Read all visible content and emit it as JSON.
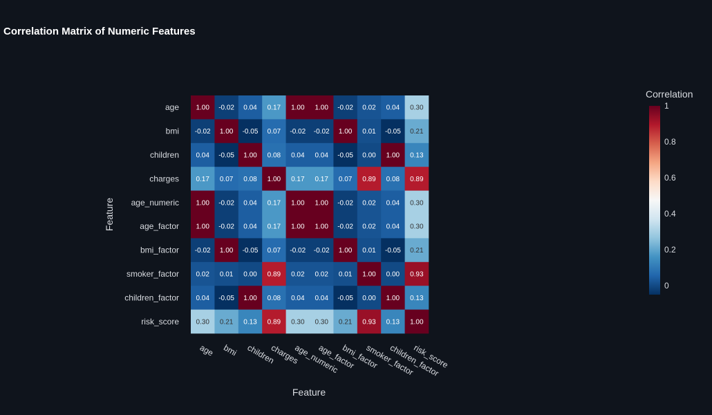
{
  "chart_data": {
    "type": "heatmap",
    "title": "Correlation Matrix of Numeric Features",
    "xlabel": "Feature",
    "ylabel": "Feature",
    "legend_title": "Correlation",
    "legend_placement": "right",
    "legend_ticks": [
      "0",
      "0.2",
      "0.4",
      "0.6",
      "0.8",
      "1"
    ],
    "color_scale": {
      "domain": [
        -0.05,
        1.0
      ],
      "stops": [
        "#053061",
        "#2166ac",
        "#4393c3",
        "#92c5de",
        "#d1e5f0",
        "#f7f7f7",
        "#fddbc7",
        "#f4a582",
        "#d6604d",
        "#b2182b",
        "#67001f"
      ]
    },
    "features": [
      "age",
      "bmi",
      "children",
      "charges",
      "age_numeric",
      "age_factor",
      "bmi_factor",
      "smoker_factor",
      "children_factor",
      "risk_score"
    ],
    "matrix": [
      [
        1.0,
        -0.02,
        0.04,
        0.17,
        1.0,
        1.0,
        -0.02,
        0.02,
        0.04,
        0.3
      ],
      [
        -0.02,
        1.0,
        -0.05,
        0.07,
        -0.02,
        -0.02,
        1.0,
        0.01,
        -0.05,
        0.21
      ],
      [
        0.04,
        -0.05,
        1.0,
        0.08,
        0.04,
        0.04,
        -0.05,
        0.0,
        1.0,
        0.13
      ],
      [
        0.17,
        0.07,
        0.08,
        1.0,
        0.17,
        0.17,
        0.07,
        0.89,
        0.08,
        0.89
      ],
      [
        1.0,
        -0.02,
        0.04,
        0.17,
        1.0,
        1.0,
        -0.02,
        0.02,
        0.04,
        0.3
      ],
      [
        1.0,
        -0.02,
        0.04,
        0.17,
        1.0,
        1.0,
        -0.02,
        0.02,
        0.04,
        0.3
      ],
      [
        -0.02,
        1.0,
        -0.05,
        0.07,
        -0.02,
        -0.02,
        1.0,
        0.01,
        -0.05,
        0.21
      ],
      [
        0.02,
        0.01,
        0.0,
        0.89,
        0.02,
        0.02,
        0.01,
        1.0,
        0.0,
        0.93
      ],
      [
        0.04,
        -0.05,
        1.0,
        0.08,
        0.04,
        0.04,
        -0.05,
        0.0,
        1.0,
        0.13
      ],
      [
        0.3,
        0.21,
        0.13,
        0.89,
        0.3,
        0.3,
        0.21,
        0.93,
        0.13,
        1.0
      ]
    ]
  }
}
